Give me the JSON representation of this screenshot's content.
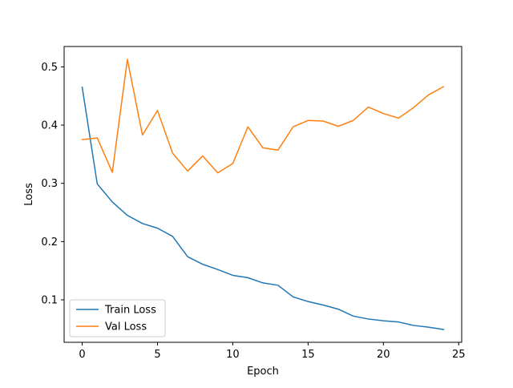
{
  "chart_data": {
    "type": "line",
    "xlabel": "Epoch",
    "ylabel": "Loss",
    "xlim": [
      -1.2,
      25.2
    ],
    "ylim": [
      0.027,
      0.535
    ],
    "xticks": [
      0,
      5,
      10,
      15,
      20,
      25
    ],
    "yticks": [
      0.1,
      0.2,
      0.3,
      0.4,
      0.5
    ],
    "xtick_labels": [
      "0",
      "5",
      "10",
      "15",
      "20",
      "25"
    ],
    "ytick_labels": [
      "0.1",
      "0.2",
      "0.3",
      "0.4",
      "0.5"
    ],
    "grid": false,
    "legend_position": "lower-left",
    "x": [
      0,
      1,
      2,
      3,
      4,
      5,
      6,
      7,
      8,
      9,
      10,
      11,
      12,
      13,
      14,
      15,
      16,
      17,
      18,
      19,
      20,
      21,
      22,
      23,
      24
    ],
    "series": [
      {
        "name": "Train Loss",
        "color": "#1f77b4",
        "values": [
          0.465,
          0.299,
          0.268,
          0.245,
          0.231,
          0.223,
          0.209,
          0.174,
          0.161,
          0.152,
          0.142,
          0.138,
          0.129,
          0.125,
          0.105,
          0.097,
          0.091,
          0.084,
          0.072,
          0.067,
          0.064,
          0.062,
          0.056,
          0.053,
          0.049
        ]
      },
      {
        "name": "Val Loss",
        "color": "#ff7f0e",
        "values": [
          0.375,
          0.378,
          0.319,
          0.513,
          0.383,
          0.425,
          0.352,
          0.321,
          0.347,
          0.318,
          0.334,
          0.397,
          0.361,
          0.357,
          0.397,
          0.408,
          0.407,
          0.398,
          0.408,
          0.431,
          0.42,
          0.412,
          0.43,
          0.452,
          0.466
        ]
      }
    ]
  }
}
